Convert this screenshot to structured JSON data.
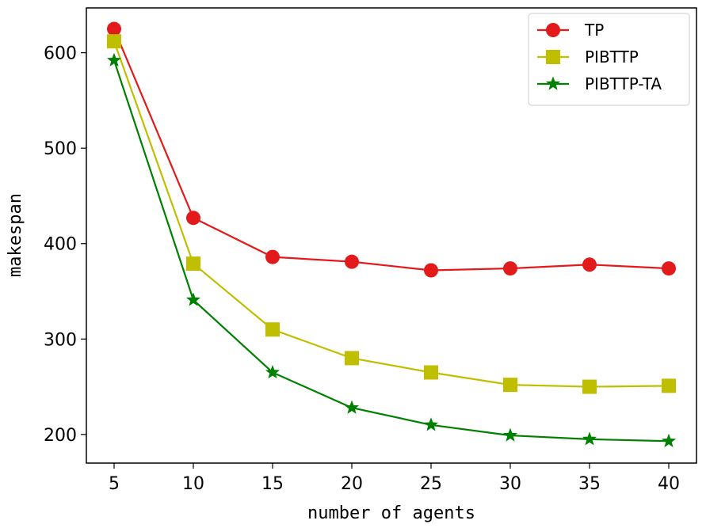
{
  "chart_data": {
    "type": "line",
    "title": "",
    "xlabel": "number of agents",
    "ylabel": "makespan",
    "x": [
      5,
      10,
      15,
      20,
      25,
      30,
      35,
      40
    ],
    "xticks": [
      5,
      10,
      15,
      20,
      25,
      30,
      35,
      40
    ],
    "yticks": [
      200,
      300,
      400,
      500,
      600
    ],
    "xlim": [
      3.25,
      41.75
    ],
    "ylim": [
      170,
      647
    ],
    "grid": false,
    "legend_position": "top-right",
    "series": [
      {
        "name": "TP",
        "color": "#e31a1c",
        "marker": "circle",
        "values": [
          625,
          427,
          386,
          381,
          372,
          374,
          378,
          374
        ]
      },
      {
        "name": "PIBTTP",
        "color": "#bfbf00",
        "marker": "square",
        "values": [
          612,
          379,
          310,
          280,
          265,
          252,
          250,
          251
        ]
      },
      {
        "name": "PIBTTP-TA",
        "color": "#008000",
        "marker": "star",
        "values": [
          592,
          341,
          265,
          228,
          210,
          199,
          195,
          193
        ]
      }
    ]
  }
}
